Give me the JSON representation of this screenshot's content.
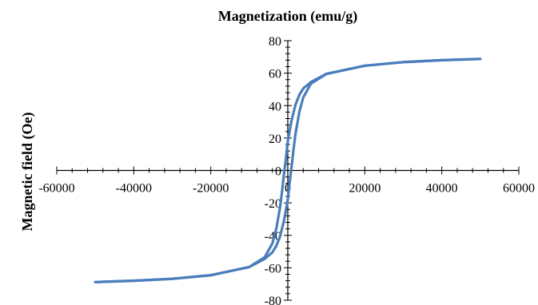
{
  "chart_data": {
    "type": "line",
    "title": "Magnetization (emu/g)",
    "xlabel": "",
    "ylabel": "Magnetic field (Oe)",
    "xlim": [
      -60000,
      60000
    ],
    "ylim": [
      -80,
      80
    ],
    "x_ticks": [
      -60000,
      -40000,
      -20000,
      0,
      20000,
      40000,
      60000
    ],
    "x_tick_labels": [
      "-60000",
      "-40000",
      "-20000",
      "0",
      "20000",
      "40000",
      "60000"
    ],
    "y_ticks": [
      -80,
      -60,
      -40,
      -20,
      0,
      20,
      40,
      60,
      80
    ],
    "y_tick_labels": [
      "-80",
      "-60",
      "-40",
      "-20",
      "0",
      "20",
      "40",
      "60",
      "80"
    ],
    "grid": false,
    "legend": "none",
    "color": "#4a7ebb",
    "series": [
      {
        "x": [
          50000,
          40000,
          30000,
          20000,
          10000,
          6000,
          4000,
          3000,
          2000,
          1000,
          0,
          -500,
          -1000,
          -1500,
          -2000,
          -3000,
          -4000,
          -6000,
          -10000,
          -20000,
          -30000,
          -40000,
          -50000
        ],
        "y": [
          68.8,
          68.0,
          66.8,
          64.6,
          59.5,
          54.5,
          50.5,
          46.5,
          40.5,
          31.0,
          18.0,
          7.0,
          -2.5,
          -13.0,
          -22.5,
          -36.0,
          -45.0,
          -53.5,
          -59.5,
          -64.6,
          -66.8,
          -68.0,
          -68.8
        ]
      },
      {
        "x": [
          -50000,
          -40000,
          -30000,
          -20000,
          -10000,
          -6000,
          -4000,
          -3000,
          -2000,
          -1000,
          0,
          500,
          1000,
          1500,
          2000,
          3000,
          4000,
          6000,
          10000,
          20000,
          30000,
          40000,
          50000
        ],
        "y": [
          -68.8,
          -68.0,
          -66.8,
          -64.6,
          -59.5,
          -54.5,
          -50.5,
          -46.5,
          -40.5,
          -31.0,
          -18.0,
          -7.0,
          2.5,
          13.0,
          22.5,
          36.0,
          45.0,
          53.5,
          59.5,
          64.6,
          66.8,
          68.0,
          68.8
        ]
      }
    ]
  }
}
